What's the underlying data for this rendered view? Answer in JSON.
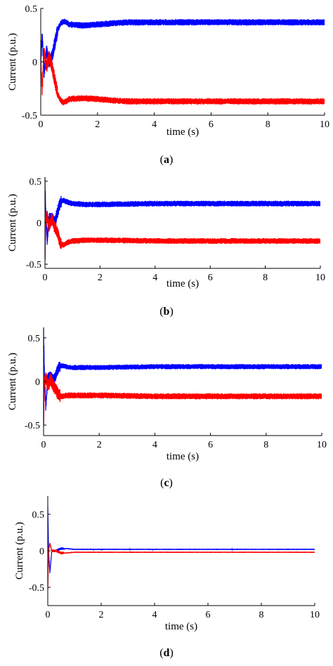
{
  "colors": {
    "series_up": "#0000ff",
    "series_down": "#ff0000",
    "axes": "#000000"
  },
  "chart_data": [
    {
      "type": "line",
      "caption_open": "(",
      "caption_letter": "a",
      "caption_close": ")",
      "xlabel": "time (s)",
      "ylabel": "Current (p.u.)",
      "xlim": [
        0,
        10
      ],
      "ylim": [
        -0.5,
        0.5
      ],
      "xticks": [
        0,
        2,
        4,
        6,
        8,
        10
      ],
      "xtick_labels": [
        "0",
        "2",
        "4",
        "6",
        "8",
        "10"
      ],
      "yticks": [
        -0.5,
        0,
        0.5
      ],
      "ytick_labels": [
        "-0.5",
        "0",
        "0.5"
      ],
      "series": [
        {
          "color": "#0000ff",
          "x": [
            0,
            0.05,
            0.12,
            0.2,
            0.3,
            0.4,
            0.5,
            0.6,
            0.7,
            0.8,
            0.9,
            1.0,
            1.5,
            2.0,
            3.0,
            5.0,
            10.0
          ],
          "y": [
            0,
            0.25,
            -0.1,
            0.1,
            0.0,
            0.05,
            0.18,
            0.3,
            0.36,
            0.38,
            0.37,
            0.35,
            0.34,
            0.35,
            0.37,
            0.37,
            0.37
          ],
          "band": 0.03
        },
        {
          "color": "#ff0000",
          "x": [
            0,
            0.05,
            0.12,
            0.2,
            0.3,
            0.4,
            0.5,
            0.6,
            0.7,
            0.8,
            0.9,
            1.0,
            1.5,
            2.0,
            3.0,
            5.0,
            10.0
          ],
          "y": [
            0,
            -0.25,
            0.1,
            -0.05,
            0.05,
            -0.05,
            -0.18,
            -0.3,
            -0.36,
            -0.38,
            -0.37,
            -0.35,
            -0.34,
            -0.35,
            -0.37,
            -0.37,
            -0.37
          ],
          "band": 0.03
        }
      ]
    },
    {
      "type": "line",
      "caption_open": "(",
      "caption_letter": "b",
      "caption_close": ")",
      "xlabel": "time (s)",
      "ylabel": "Current (p.u.)",
      "xlim": [
        0,
        10
      ],
      "ylim": [
        -0.55,
        0.55
      ],
      "xticks": [
        0,
        2,
        4,
        6,
        8,
        10
      ],
      "xtick_labels": [
        "0",
        "2",
        "4",
        "6",
        "8",
        "10"
      ],
      "yticks": [
        -0.5,
        0,
        0.5
      ],
      "ytick_labels": [
        "-0.5",
        "0",
        "0.5"
      ],
      "series": [
        {
          "color": "#0000ff",
          "x": [
            0,
            0.03,
            0.08,
            0.15,
            0.25,
            0.35,
            0.45,
            0.55,
            0.65,
            0.8,
            1.0,
            1.5,
            2.0,
            4.0,
            10.0
          ],
          "y": [
            0.5,
            0.1,
            -0.2,
            0.05,
            0.05,
            0.0,
            0.12,
            0.24,
            0.27,
            0.25,
            0.23,
            0.22,
            0.22,
            0.23,
            0.23
          ],
          "band": 0.035
        },
        {
          "color": "#ff0000",
          "x": [
            0,
            0.03,
            0.08,
            0.15,
            0.25,
            0.35,
            0.45,
            0.55,
            0.65,
            0.8,
            1.0,
            1.5,
            2.0,
            4.0,
            10.0
          ],
          "y": [
            -0.5,
            0.0,
            0.1,
            -0.05,
            0.05,
            -0.05,
            -0.12,
            -0.24,
            -0.27,
            -0.24,
            -0.22,
            -0.21,
            -0.21,
            -0.22,
            -0.22
          ],
          "band": 0.035
        }
      ]
    },
    {
      "type": "line",
      "caption_open": "(",
      "caption_letter": "c",
      "caption_close": ")",
      "xlabel": "time (s)",
      "ylabel": "Current (p.u.)",
      "xlim": [
        0,
        10
      ],
      "ylim": [
        -0.62,
        0.62
      ],
      "xticks": [
        0,
        2,
        4,
        6,
        8,
        10
      ],
      "xtick_labels": [
        "0",
        "2",
        "4",
        "6",
        "8",
        "10"
      ],
      "yticks": [
        -0.5,
        0,
        0.5
      ],
      "ytick_labels": [
        "-0.5",
        "0",
        "0.5"
      ],
      "series": [
        {
          "color": "#0000ff",
          "x": [
            0,
            0.03,
            0.08,
            0.15,
            0.25,
            0.35,
            0.45,
            0.55,
            0.65,
            0.8,
            1.0,
            2.0,
            4.0,
            10.0
          ],
          "y": [
            0.6,
            0.1,
            -0.3,
            0.05,
            0.05,
            0.02,
            0.08,
            0.17,
            0.18,
            0.17,
            0.16,
            0.16,
            0.17,
            0.17
          ],
          "band": 0.03
        },
        {
          "color": "#ff0000",
          "x": [
            0,
            0.03,
            0.08,
            0.15,
            0.25,
            0.35,
            0.45,
            0.55,
            0.65,
            0.8,
            1.0,
            2.0,
            4.0,
            10.0
          ],
          "y": [
            -0.55,
            0.0,
            0.05,
            -0.05,
            0.02,
            -0.05,
            -0.1,
            -0.16,
            -0.17,
            -0.16,
            -0.16,
            -0.16,
            -0.17,
            -0.17
          ],
          "band": 0.035
        }
      ]
    },
    {
      "type": "line",
      "caption_open": "(",
      "caption_letter": "d",
      "caption_close": ")",
      "xlabel": "time (s)",
      "ylabel": "Current (p.u.)",
      "xlim": [
        0,
        10
      ],
      "ylim": [
        -0.75,
        0.75
      ],
      "xticks": [
        0,
        2,
        4,
        6,
        8,
        10
      ],
      "xtick_labels": [
        "0",
        "2",
        "4",
        "6",
        "8",
        "10"
      ],
      "yticks": [
        -0.5,
        0,
        0.5
      ],
      "ytick_labels": [
        "-0.5",
        "0",
        "0.5"
      ],
      "series": [
        {
          "color": "#0000ff",
          "x": [
            0,
            0.03,
            0.08,
            0.15,
            0.3,
            0.5,
            0.7,
            1.0,
            2.0,
            10.0
          ],
          "y": [
            0.6,
            0.0,
            -0.3,
            0.0,
            0.0,
            0.03,
            0.03,
            0.02,
            0.02,
            0.02
          ],
          "band": 0.008
        },
        {
          "color": "#ff0000",
          "x": [
            0,
            0.03,
            0.08,
            0.15,
            0.3,
            0.5,
            0.7,
            1.0,
            2.0,
            10.0
          ],
          "y": [
            -0.55,
            0.0,
            0.1,
            0.0,
            0.0,
            -0.03,
            -0.03,
            -0.02,
            -0.02,
            -0.02
          ],
          "band": 0.008
        }
      ]
    }
  ]
}
